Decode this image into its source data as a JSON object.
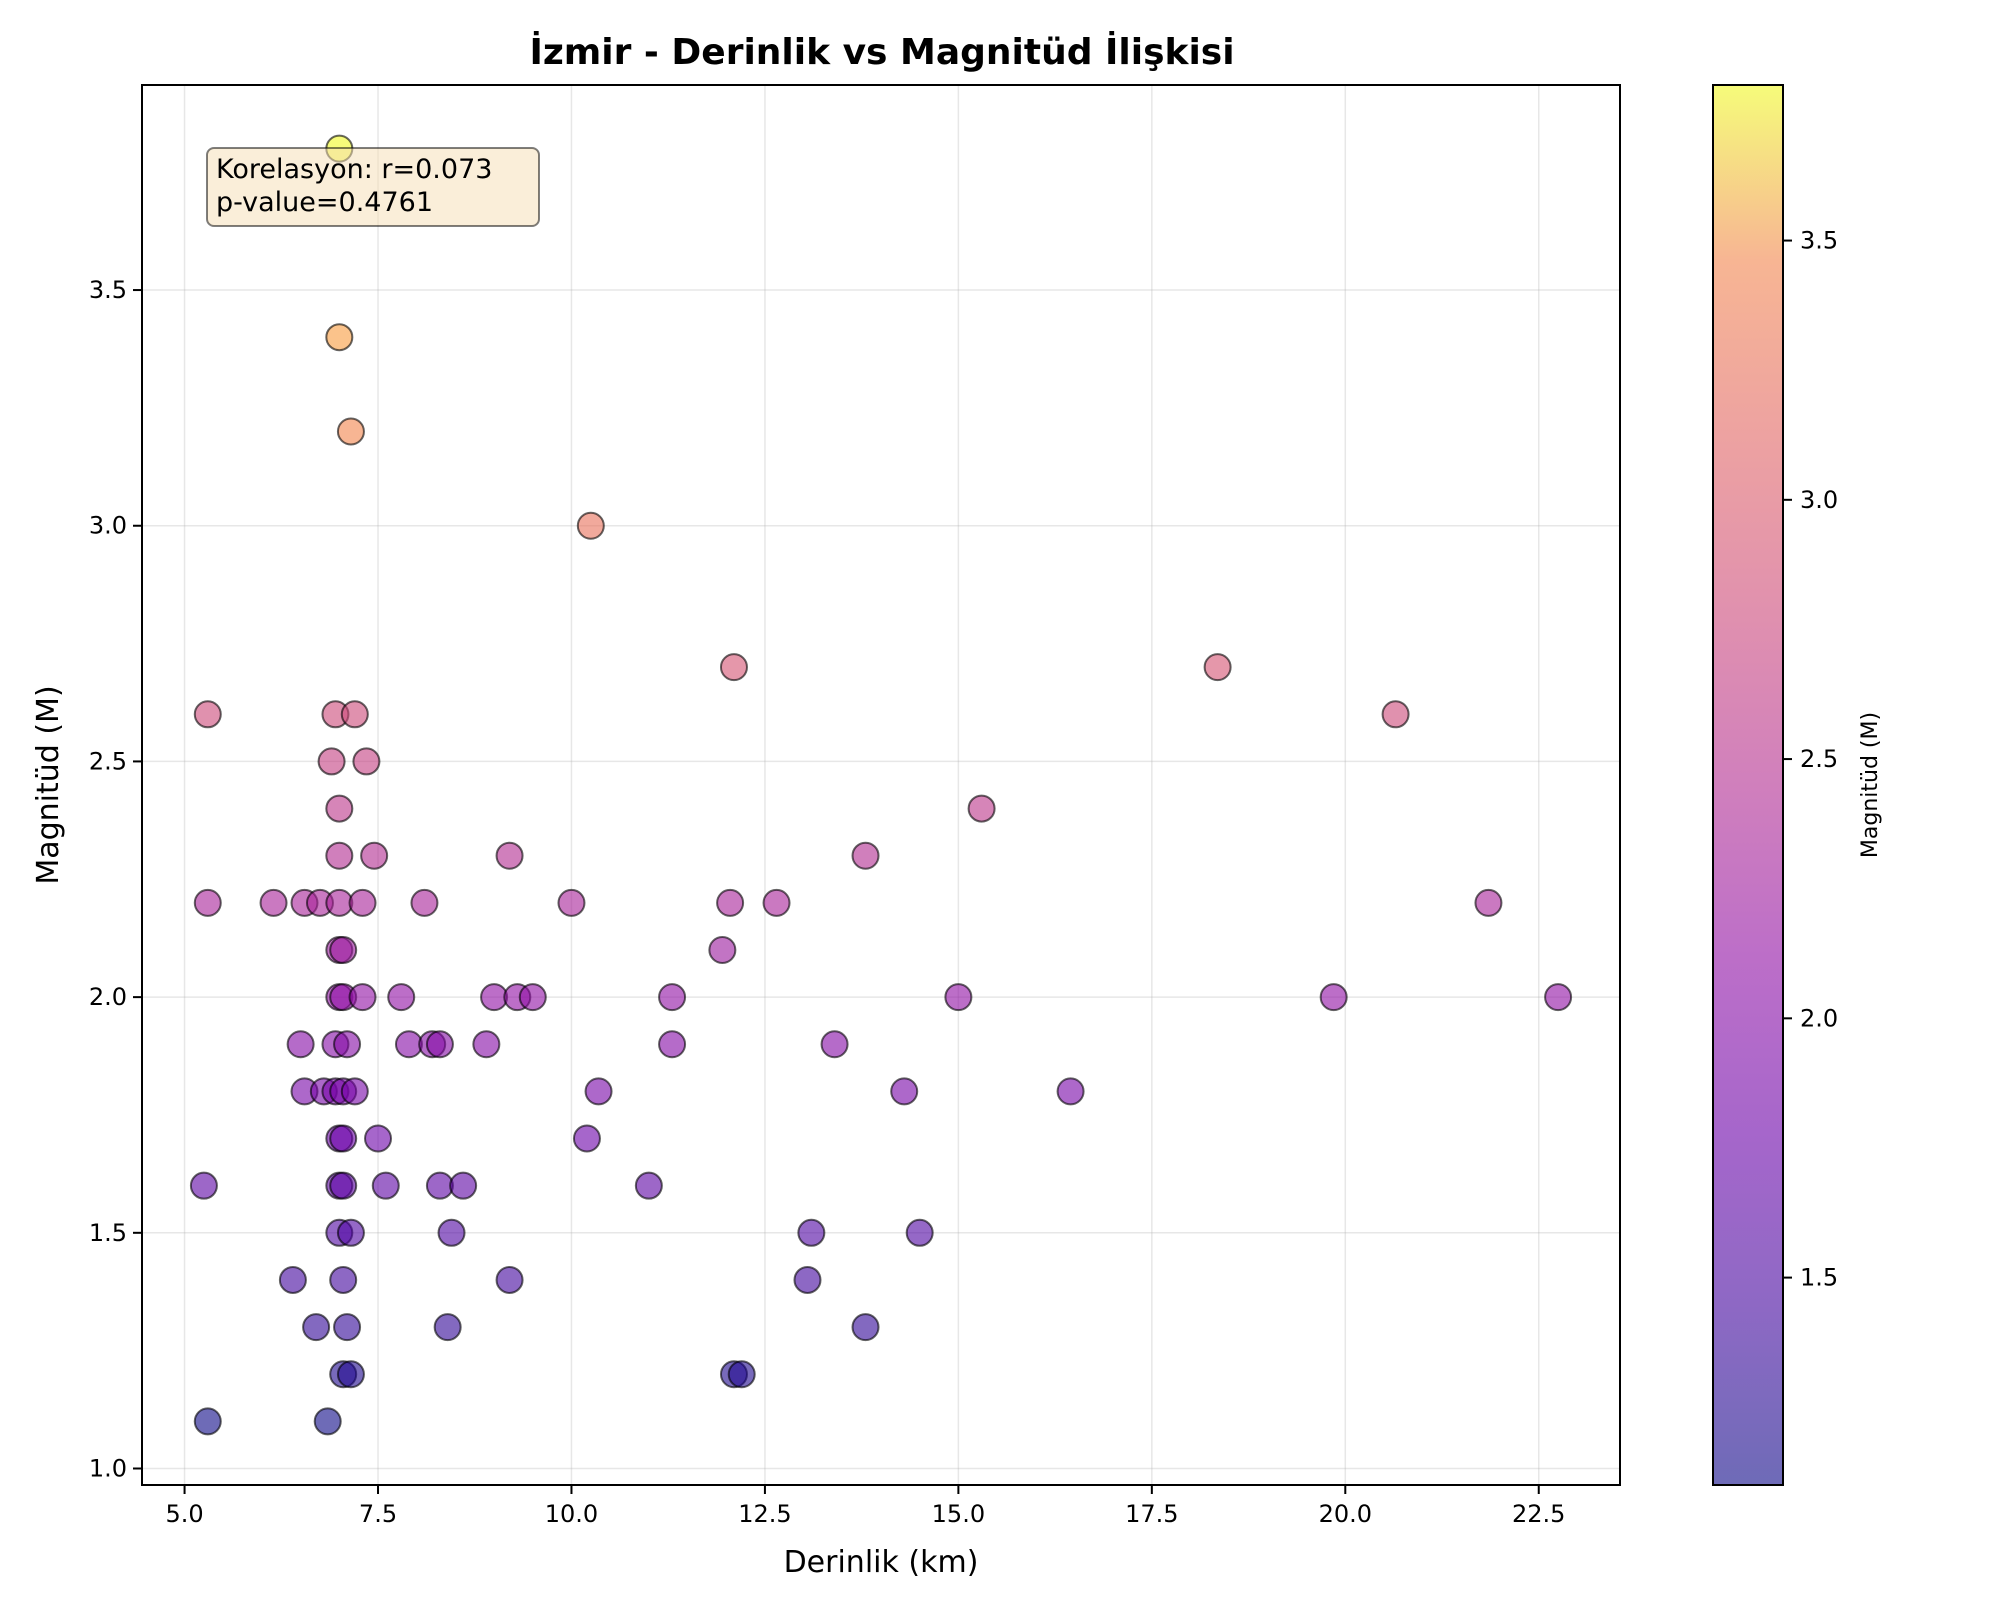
{
  "chart_data": {
    "type": "scatter",
    "title": "İzmir - Derinlik vs Magnitüd İlişkisi",
    "xlabel": "Derinlik (km)",
    "ylabel": "Magnitüd (M)",
    "xlim": [
      4.45,
      23.55
    ],
    "ylim": [
      0.965,
      3.935
    ],
    "xticks": [
      "5.0",
      "7.5",
      "10.0",
      "12.5",
      "15.0",
      "17.5",
      "20.0",
      "22.5"
    ],
    "yticks": [
      "1.0",
      "1.5",
      "2.0",
      "2.5",
      "3.0",
      "3.5"
    ],
    "grid": true,
    "colormap": "plasma",
    "marker_alpha": 0.6,
    "colorbar": {
      "label": "Magnitüd (M)",
      "range": [
        1.1,
        3.8
      ],
      "ticks": [
        "1.5",
        "2.0",
        "2.5",
        "3.0",
        "3.5"
      ]
    },
    "annotation": {
      "line1": "Korelasyon: r=0.073",
      "line2": "p-value=0.4761",
      "background": "#f5deb3"
    },
    "points": [
      [
        7.0,
        3.8
      ],
      [
        7.0,
        3.4
      ],
      [
        7.15,
        3.2
      ],
      [
        10.25,
        3.0
      ],
      [
        12.1,
        2.7
      ],
      [
        18.35,
        2.7
      ],
      [
        5.3,
        2.6
      ],
      [
        6.95,
        2.6
      ],
      [
        7.2,
        2.6
      ],
      [
        20.65,
        2.6
      ],
      [
        6.9,
        2.5
      ],
      [
        7.35,
        2.5
      ],
      [
        7.0,
        2.4
      ],
      [
        15.3,
        2.4
      ],
      [
        7.0,
        2.3
      ],
      [
        7.45,
        2.3
      ],
      [
        9.2,
        2.3
      ],
      [
        13.8,
        2.3
      ],
      [
        5.3,
        2.2
      ],
      [
        6.15,
        2.2
      ],
      [
        6.55,
        2.2
      ],
      [
        6.75,
        2.2
      ],
      [
        7.0,
        2.2
      ],
      [
        7.3,
        2.2
      ],
      [
        8.1,
        2.2
      ],
      [
        10.0,
        2.2
      ],
      [
        12.05,
        2.2
      ],
      [
        12.65,
        2.2
      ],
      [
        21.85,
        2.2
      ],
      [
        7.0,
        2.1
      ],
      [
        7.05,
        2.1
      ],
      [
        11.95,
        2.1
      ],
      [
        7.0,
        2.0
      ],
      [
        7.05,
        2.0
      ],
      [
        7.3,
        2.0
      ],
      [
        7.8,
        2.0
      ],
      [
        9.0,
        2.0
      ],
      [
        9.3,
        2.0
      ],
      [
        9.5,
        2.0
      ],
      [
        11.3,
        2.0
      ],
      [
        15.0,
        2.0
      ],
      [
        19.85,
        2.0
      ],
      [
        22.75,
        2.0
      ],
      [
        6.5,
        1.9
      ],
      [
        6.95,
        1.9
      ],
      [
        7.1,
        1.9
      ],
      [
        7.9,
        1.9
      ],
      [
        8.2,
        1.9
      ],
      [
        8.3,
        1.9
      ],
      [
        8.9,
        1.9
      ],
      [
        11.3,
        1.9
      ],
      [
        13.4,
        1.9
      ],
      [
        6.55,
        1.8
      ],
      [
        6.8,
        1.8
      ],
      [
        6.95,
        1.8
      ],
      [
        7.05,
        1.8
      ],
      [
        7.2,
        1.8
      ],
      [
        10.35,
        1.8
      ],
      [
        14.3,
        1.8
      ],
      [
        16.45,
        1.8
      ],
      [
        7.0,
        1.7
      ],
      [
        7.05,
        1.7
      ],
      [
        7.5,
        1.7
      ],
      [
        10.2,
        1.7
      ],
      [
        5.25,
        1.6
      ],
      [
        7.0,
        1.6
      ],
      [
        7.05,
        1.6
      ],
      [
        7.6,
        1.6
      ],
      [
        8.3,
        1.6
      ],
      [
        8.6,
        1.6
      ],
      [
        11.0,
        1.6
      ],
      [
        7.0,
        1.5
      ],
      [
        7.15,
        1.5
      ],
      [
        8.45,
        1.5
      ],
      [
        13.1,
        1.5
      ],
      [
        14.5,
        1.5
      ],
      [
        6.4,
        1.4
      ],
      [
        7.05,
        1.4
      ],
      [
        9.2,
        1.4
      ],
      [
        13.05,
        1.4
      ],
      [
        6.7,
        1.3
      ],
      [
        7.1,
        1.3
      ],
      [
        8.4,
        1.3
      ],
      [
        13.8,
        1.3
      ],
      [
        7.05,
        1.2
      ],
      [
        7.15,
        1.2
      ],
      [
        12.1,
        1.2
      ],
      [
        12.2,
        1.2
      ],
      [
        5.3,
        1.1
      ],
      [
        6.85,
        1.1
      ]
    ]
  }
}
